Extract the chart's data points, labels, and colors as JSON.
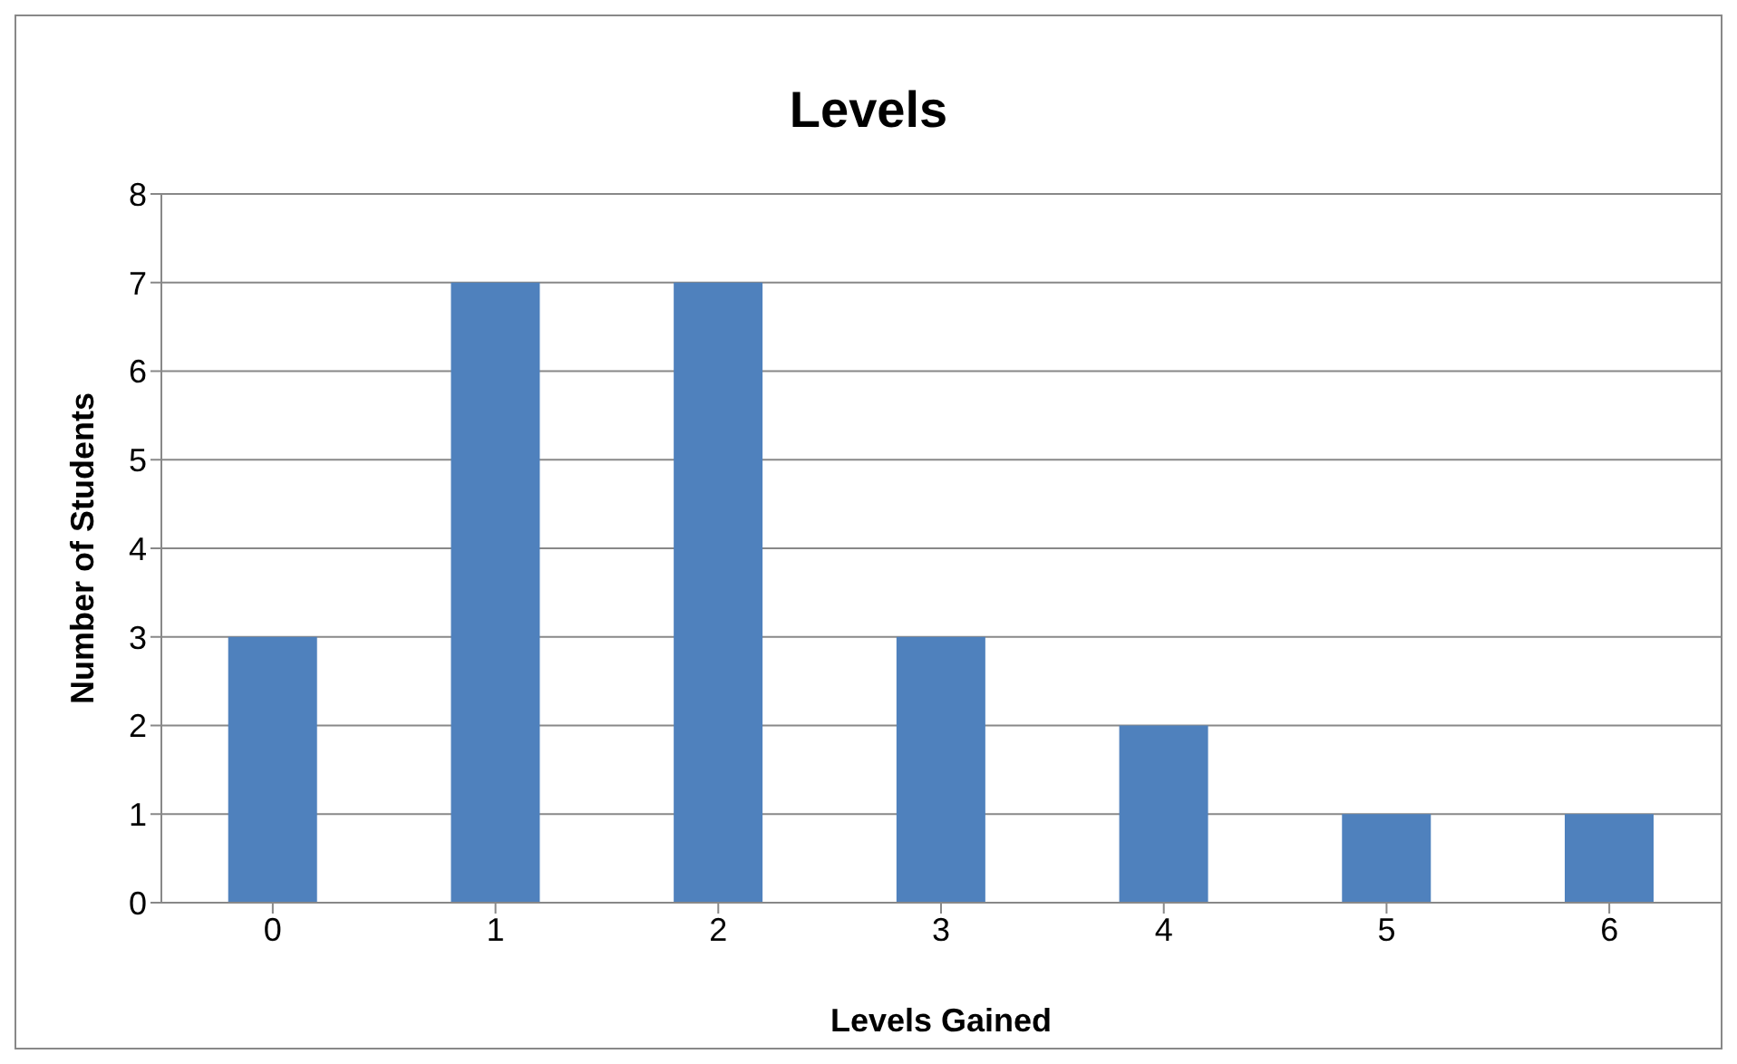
{
  "chart_data": {
    "type": "bar",
    "title": "Levels",
    "xlabel": "Levels Gained",
    "ylabel": "Number of Students",
    "categories": [
      "0",
      "1",
      "2",
      "3",
      "4",
      "5",
      "6"
    ],
    "values": [
      3,
      7,
      7,
      3,
      2,
      1,
      1
    ],
    "color": "#4f81bd",
    "ylim": [
      0,
      8
    ],
    "yticks": [
      0,
      1,
      2,
      3,
      4,
      5,
      6,
      7,
      8
    ],
    "grid": "y"
  }
}
